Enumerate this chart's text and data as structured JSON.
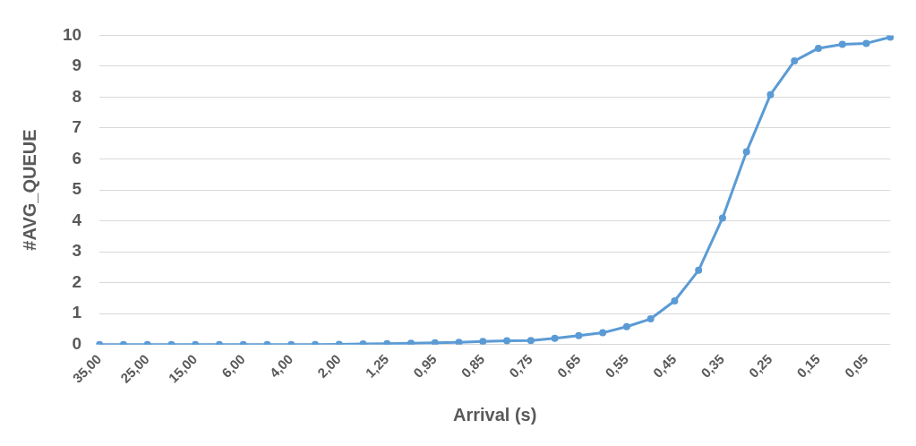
{
  "chart_data": {
    "type": "line",
    "xlabel": "Arrival (s)",
    "ylabel": "#AVG_QUEUE",
    "categories": [
      "35,00",
      null,
      "25,00",
      null,
      "15,00",
      null,
      "6,00",
      null,
      "4,00",
      null,
      "2,00",
      null,
      "1,25",
      null,
      "0,95",
      null,
      "0,85",
      null,
      "0,75",
      null,
      "0,65",
      null,
      "0,55",
      null,
      "0,45",
      null,
      "0,35",
      null,
      "0,25",
      null,
      "0,15",
      null,
      "0,05",
      null
    ],
    "series": [
      {
        "color": "#5b9bd5",
        "values": [
          0,
          0,
          0,
          0,
          0,
          0,
          0,
          0,
          0,
          0,
          0.01,
          0.02,
          0.03,
          0.04,
          0.06,
          0.07,
          0.1,
          0.12,
          0.13,
          0.2,
          0.29,
          0.38,
          0.58,
          0.83,
          1.41,
          2.4,
          4.09,
          6.23,
          8.08,
          9.17,
          9.58,
          9.71,
          9.74,
          9.94
        ]
      }
    ],
    "ylim": [
      0,
      10
    ],
    "yticks": [
      0,
      1,
      2,
      3,
      4,
      5,
      6,
      7,
      8,
      9,
      10
    ],
    "grid": "y",
    "legend": false,
    "marker": "circle",
    "line_style": "solid"
  }
}
